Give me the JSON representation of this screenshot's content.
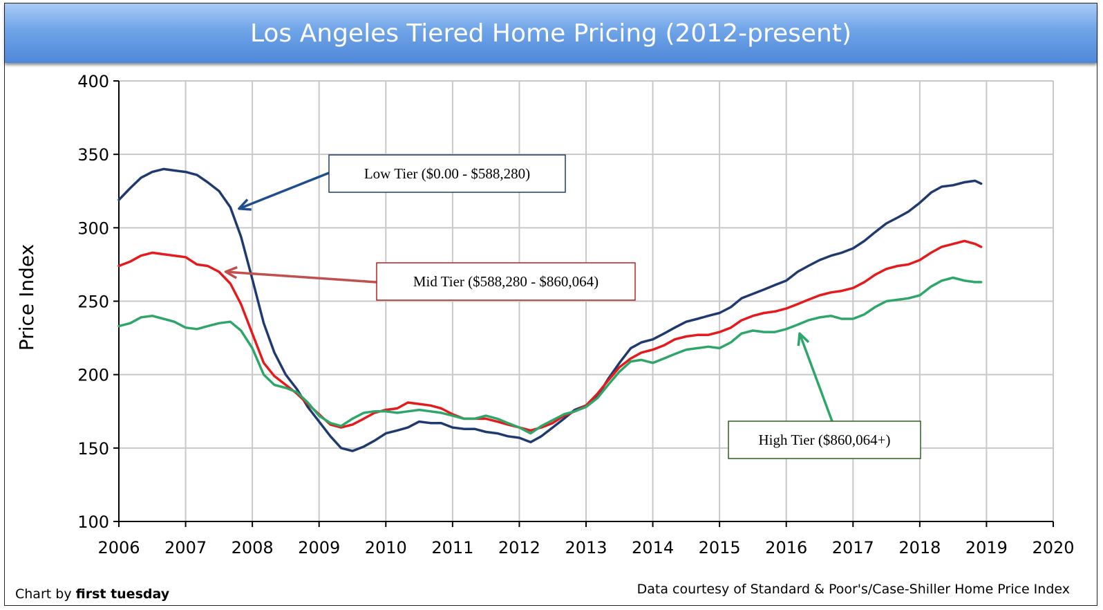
{
  "chart_data": {
    "type": "line",
    "title": "Los Angeles Tiered Home Pricing (2012-present)",
    "xlabel": "",
    "ylabel": "Price Index",
    "xlim": [
      2006,
      2020
    ],
    "ylim": [
      100,
      400
    ],
    "xticks": [
      "2006",
      "2007",
      "2008",
      "2009",
      "2010",
      "2011",
      "2012",
      "2013",
      "2014",
      "2015",
      "2016",
      "2017",
      "2018",
      "2019",
      "2020"
    ],
    "yticks": [
      "100",
      "150",
      "200",
      "250",
      "300",
      "350",
      "400"
    ],
    "grid": true,
    "series": [
      {
        "name": "Low Tier ($0.00 - $588,280)",
        "color": "#1f3a6e",
        "points": [
          [
            2006.0,
            319
          ],
          [
            2006.17,
            327
          ],
          [
            2006.33,
            334
          ],
          [
            2006.5,
            338
          ],
          [
            2006.67,
            340
          ],
          [
            2006.83,
            339
          ],
          [
            2007.0,
            338
          ],
          [
            2007.17,
            336
          ],
          [
            2007.33,
            331
          ],
          [
            2007.5,
            325
          ],
          [
            2007.67,
            314
          ],
          [
            2007.83,
            294
          ],
          [
            2008.0,
            265
          ],
          [
            2008.17,
            235
          ],
          [
            2008.33,
            215
          ],
          [
            2008.5,
            200
          ],
          [
            2008.67,
            190
          ],
          [
            2008.83,
            178
          ],
          [
            2009.0,
            168
          ],
          [
            2009.17,
            158
          ],
          [
            2009.33,
            150
          ],
          [
            2009.5,
            148
          ],
          [
            2009.67,
            151
          ],
          [
            2009.83,
            155
          ],
          [
            2010.0,
            160
          ],
          [
            2010.17,
            162
          ],
          [
            2010.33,
            164
          ],
          [
            2010.5,
            168
          ],
          [
            2010.67,
            167
          ],
          [
            2010.83,
            167
          ],
          [
            2011.0,
            164
          ],
          [
            2011.17,
            163
          ],
          [
            2011.33,
            163
          ],
          [
            2011.5,
            161
          ],
          [
            2011.67,
            160
          ],
          [
            2011.83,
            158
          ],
          [
            2012.0,
            157
          ],
          [
            2012.17,
            154
          ],
          [
            2012.33,
            158
          ],
          [
            2012.5,
            164
          ],
          [
            2012.67,
            170
          ],
          [
            2012.83,
            176
          ],
          [
            2013.0,
            179
          ],
          [
            2013.17,
            185
          ],
          [
            2013.33,
            197
          ],
          [
            2013.5,
            208
          ],
          [
            2013.67,
            218
          ],
          [
            2013.83,
            222
          ],
          [
            2014.0,
            224
          ],
          [
            2014.17,
            228
          ],
          [
            2014.33,
            232
          ],
          [
            2014.5,
            236
          ],
          [
            2014.67,
            238
          ],
          [
            2014.83,
            240
          ],
          [
            2015.0,
            242
          ],
          [
            2015.17,
            246
          ],
          [
            2015.33,
            252
          ],
          [
            2015.5,
            255
          ],
          [
            2015.67,
            258
          ],
          [
            2015.83,
            261
          ],
          [
            2016.0,
            264
          ],
          [
            2016.17,
            270
          ],
          [
            2016.33,
            274
          ],
          [
            2016.5,
            278
          ],
          [
            2016.67,
            281
          ],
          [
            2016.83,
            283
          ],
          [
            2017.0,
            286
          ],
          [
            2017.17,
            291
          ],
          [
            2017.33,
            297
          ],
          [
            2017.5,
            303
          ],
          [
            2017.67,
            307
          ],
          [
            2017.83,
            311
          ],
          [
            2018.0,
            317
          ],
          [
            2018.17,
            324
          ],
          [
            2018.33,
            328
          ],
          [
            2018.5,
            329
          ],
          [
            2018.67,
            331
          ],
          [
            2018.83,
            332
          ],
          [
            2018.92,
            330
          ]
        ]
      },
      {
        "name": "Mid Tier ($588,280 - $860,064)",
        "color": "#e41a1c",
        "points": [
          [
            2006.0,
            274
          ],
          [
            2006.17,
            277
          ],
          [
            2006.33,
            281
          ],
          [
            2006.5,
            283
          ],
          [
            2006.67,
            282
          ],
          [
            2006.83,
            281
          ],
          [
            2007.0,
            280
          ],
          [
            2007.17,
            275
          ],
          [
            2007.33,
            274
          ],
          [
            2007.5,
            270
          ],
          [
            2007.67,
            262
          ],
          [
            2007.83,
            248
          ],
          [
            2008.0,
            228
          ],
          [
            2008.17,
            208
          ],
          [
            2008.33,
            199
          ],
          [
            2008.5,
            193
          ],
          [
            2008.67,
            187
          ],
          [
            2008.83,
            180
          ],
          [
            2009.0,
            173
          ],
          [
            2009.17,
            166
          ],
          [
            2009.33,
            164
          ],
          [
            2009.5,
            166
          ],
          [
            2009.67,
            170
          ],
          [
            2009.83,
            174
          ],
          [
            2010.0,
            176
          ],
          [
            2010.17,
            177
          ],
          [
            2010.33,
            181
          ],
          [
            2010.5,
            180
          ],
          [
            2010.67,
            179
          ],
          [
            2010.83,
            177
          ],
          [
            2011.0,
            173
          ],
          [
            2011.17,
            170
          ],
          [
            2011.33,
            170
          ],
          [
            2011.5,
            170
          ],
          [
            2011.67,
            168
          ],
          [
            2011.83,
            166
          ],
          [
            2012.0,
            164
          ],
          [
            2012.17,
            162
          ],
          [
            2012.33,
            164
          ],
          [
            2012.5,
            167
          ],
          [
            2012.67,
            172
          ],
          [
            2012.83,
            175
          ],
          [
            2013.0,
            179
          ],
          [
            2013.17,
            187
          ],
          [
            2013.33,
            196
          ],
          [
            2013.5,
            205
          ],
          [
            2013.67,
            211
          ],
          [
            2013.83,
            215
          ],
          [
            2014.0,
            217
          ],
          [
            2014.17,
            220
          ],
          [
            2014.33,
            224
          ],
          [
            2014.5,
            226
          ],
          [
            2014.67,
            227
          ],
          [
            2014.83,
            227
          ],
          [
            2015.0,
            229
          ],
          [
            2015.17,
            232
          ],
          [
            2015.33,
            237
          ],
          [
            2015.5,
            240
          ],
          [
            2015.67,
            242
          ],
          [
            2015.83,
            243
          ],
          [
            2016.0,
            245
          ],
          [
            2016.17,
            248
          ],
          [
            2016.33,
            251
          ],
          [
            2016.5,
            254
          ],
          [
            2016.67,
            256
          ],
          [
            2016.83,
            257
          ],
          [
            2017.0,
            259
          ],
          [
            2017.17,
            263
          ],
          [
            2017.33,
            268
          ],
          [
            2017.5,
            272
          ],
          [
            2017.67,
            274
          ],
          [
            2017.83,
            275
          ],
          [
            2018.0,
            278
          ],
          [
            2018.17,
            283
          ],
          [
            2018.33,
            287
          ],
          [
            2018.5,
            289
          ],
          [
            2018.67,
            291
          ],
          [
            2018.83,
            289
          ],
          [
            2018.92,
            287
          ]
        ]
      },
      {
        "name": "High Tier ($860,064+)",
        "color": "#2ea66a",
        "points": [
          [
            2006.0,
            233
          ],
          [
            2006.17,
            235
          ],
          [
            2006.33,
            239
          ],
          [
            2006.5,
            240
          ],
          [
            2006.67,
            238
          ],
          [
            2006.83,
            236
          ],
          [
            2007.0,
            232
          ],
          [
            2007.17,
            231
          ],
          [
            2007.33,
            233
          ],
          [
            2007.5,
            235
          ],
          [
            2007.67,
            236
          ],
          [
            2007.83,
            230
          ],
          [
            2008.0,
            218
          ],
          [
            2008.17,
            200
          ],
          [
            2008.33,
            193
          ],
          [
            2008.5,
            191
          ],
          [
            2008.67,
            188
          ],
          [
            2008.83,
            181
          ],
          [
            2009.0,
            172
          ],
          [
            2009.17,
            167
          ],
          [
            2009.33,
            165
          ],
          [
            2009.5,
            170
          ],
          [
            2009.67,
            174
          ],
          [
            2009.83,
            175
          ],
          [
            2010.0,
            175
          ],
          [
            2010.17,
            174
          ],
          [
            2010.33,
            175
          ],
          [
            2010.5,
            176
          ],
          [
            2010.67,
            175
          ],
          [
            2010.83,
            174
          ],
          [
            2011.0,
            172
          ],
          [
            2011.17,
            170
          ],
          [
            2011.33,
            170
          ],
          [
            2011.5,
            172
          ],
          [
            2011.67,
            170
          ],
          [
            2011.83,
            167
          ],
          [
            2012.0,
            164
          ],
          [
            2012.17,
            160
          ],
          [
            2012.33,
            165
          ],
          [
            2012.5,
            169
          ],
          [
            2012.67,
            173
          ],
          [
            2012.83,
            175
          ],
          [
            2013.0,
            178
          ],
          [
            2013.17,
            184
          ],
          [
            2013.33,
            193
          ],
          [
            2013.5,
            202
          ],
          [
            2013.67,
            209
          ],
          [
            2013.83,
            210
          ],
          [
            2014.0,
            208
          ],
          [
            2014.17,
            211
          ],
          [
            2014.33,
            214
          ],
          [
            2014.5,
            217
          ],
          [
            2014.67,
            218
          ],
          [
            2014.83,
            219
          ],
          [
            2015.0,
            218
          ],
          [
            2015.17,
            222
          ],
          [
            2015.33,
            228
          ],
          [
            2015.5,
            230
          ],
          [
            2015.67,
            229
          ],
          [
            2015.83,
            229
          ],
          [
            2016.0,
            231
          ],
          [
            2016.17,
            234
          ],
          [
            2016.33,
            237
          ],
          [
            2016.5,
            239
          ],
          [
            2016.67,
            240
          ],
          [
            2016.83,
            238
          ],
          [
            2017.0,
            238
          ],
          [
            2017.17,
            241
          ],
          [
            2017.33,
            246
          ],
          [
            2017.5,
            250
          ],
          [
            2017.67,
            251
          ],
          [
            2017.83,
            252
          ],
          [
            2018.0,
            254
          ],
          [
            2018.17,
            260
          ],
          [
            2018.33,
            264
          ],
          [
            2018.5,
            266
          ],
          [
            2018.67,
            264
          ],
          [
            2018.83,
            263
          ],
          [
            2018.92,
            263
          ]
        ]
      }
    ],
    "annotations": [
      {
        "text": "Low Tier ($0.00 - $588,280)",
        "color": "#1f3a6e",
        "arrow_color": "#1f4e8c",
        "target": [
          2007.8,
          313
        ]
      },
      {
        "text": "Mid Tier ($588,280 - $860,064)",
        "color": "#b22222",
        "arrow_color": "#c0504d",
        "target": [
          2007.6,
          270
        ]
      },
      {
        "text": "High Tier ($860,064+)",
        "color": "#2e5e1e",
        "arrow_color": "#2ea66a",
        "target": [
          2016.2,
          228
        ]
      }
    ],
    "footer_left_prefix": "Chart by ",
    "footer_left_bold": "first tuesday",
    "footer_right": "Data courtesy of Standard & Poor's/Case-Shiller Home Price Index"
  }
}
